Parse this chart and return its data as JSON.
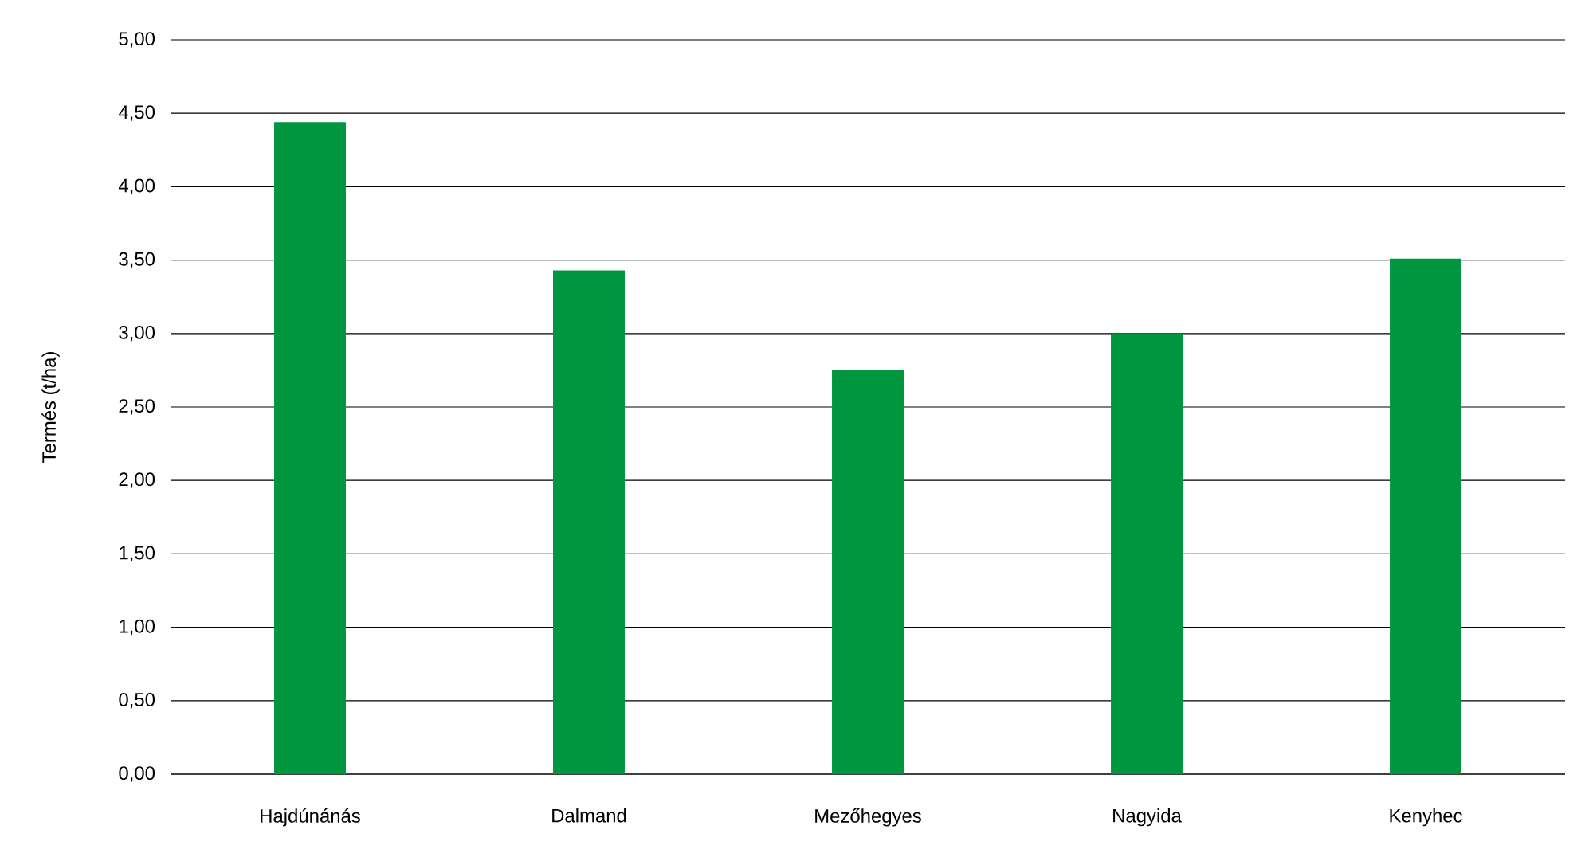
{
  "chart_data": {
    "type": "bar",
    "ylabel": "Termés (t/ha)",
    "categories": [
      "Hajdúnánás",
      "Dalmand",
      "Mezőhegyes",
      "Nagyida",
      "Kenyhec"
    ],
    "values": [
      4.44,
      3.43,
      2.75,
      3.0,
      3.51
    ],
    "color": "#009640",
    "ylim": [
      0,
      5
    ],
    "yticks": [
      {
        "value": 0,
        "label": "0,00"
      },
      {
        "value": 0.5,
        "label": "0,50"
      },
      {
        "value": 1,
        "label": "1,00"
      },
      {
        "value": 1.5,
        "label": "1,50"
      },
      {
        "value": 2,
        "label": "2,00"
      },
      {
        "value": 2.5,
        "label": "2,50"
      },
      {
        "value": 3,
        "label": "3,00"
      },
      {
        "value": 3.5,
        "label": "3,50"
      },
      {
        "value": 4,
        "label": "4,00"
      },
      {
        "value": 4.5,
        "label": "4,50"
      },
      {
        "value": 5,
        "label": "5,00"
      }
    ],
    "grid": "y"
  }
}
